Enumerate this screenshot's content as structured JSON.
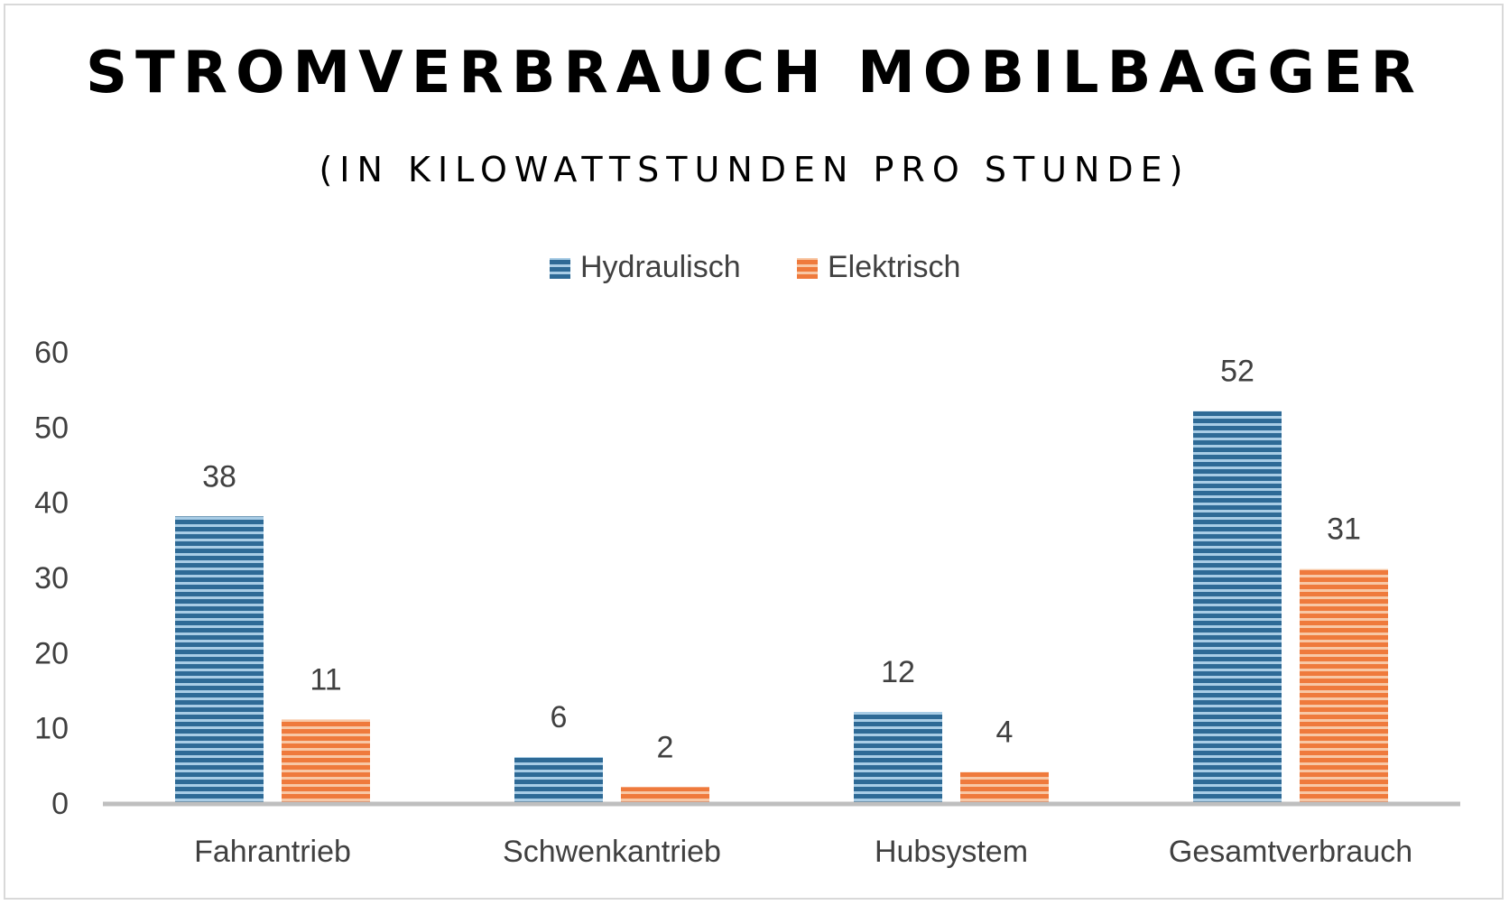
{
  "chart_data": {
    "type": "bar",
    "title": "STROMVERBRAUCH MOBILBAGGER",
    "subtitle": "(IN KILOWATTSTUNDEN PRO STUNDE)",
    "categories": [
      "Fahrantrieb",
      "Schwenkantrieb",
      "Hubsystem",
      "Gesamtverbrauch"
    ],
    "series": [
      {
        "name": "Hydraulisch",
        "values": [
          38,
          6,
          12,
          52
        ],
        "color": "#2e6a96"
      },
      {
        "name": "Elektrisch",
        "values": [
          11,
          2,
          4,
          31
        ],
        "color": "#ef7a3c"
      }
    ],
    "xlabel": "",
    "ylabel": "",
    "ylim": [
      0,
      60
    ],
    "yticks": [
      "0",
      "10",
      "20",
      "30",
      "40",
      "50",
      "60"
    ],
    "grid": false,
    "legend": "top-center",
    "data_labels": true
  }
}
